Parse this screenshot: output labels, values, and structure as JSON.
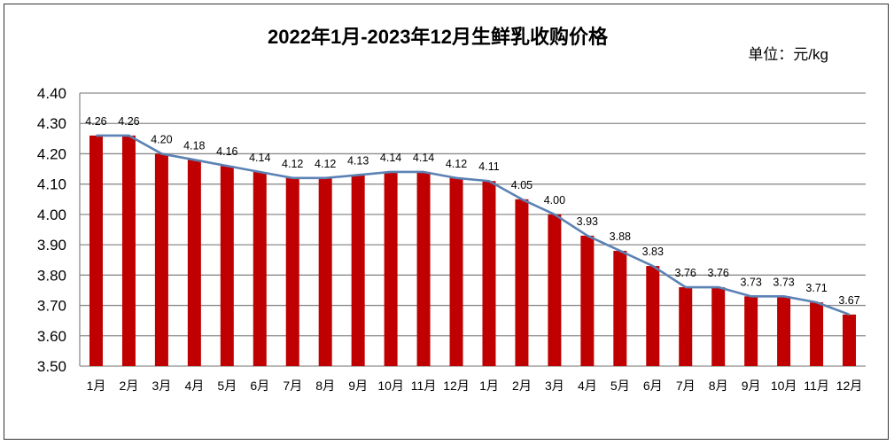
{
  "chart_data": {
    "type": "bar",
    "title": "2022年1月-2023年12月生鲜乳收购价格",
    "unit_label": "单位：元/kg",
    "categories": [
      "1月",
      "2月",
      "3月",
      "4月",
      "5月",
      "6月",
      "7月",
      "8月",
      "9月",
      "10月",
      "11月",
      "12月",
      "1月",
      "2月",
      "3月",
      "4月",
      "5月",
      "6月",
      "7月",
      "8月",
      "9月",
      "10月",
      "11月",
      "12月"
    ],
    "values": [
      4.26,
      4.26,
      4.2,
      4.18,
      4.16,
      4.14,
      4.12,
      4.12,
      4.13,
      4.14,
      4.14,
      4.12,
      4.11,
      4.05,
      4.0,
      3.93,
      3.88,
      3.83,
      3.76,
      3.76,
      3.73,
      3.73,
      3.71,
      3.67
    ],
    "line_overlay": true,
    "ylim": [
      3.5,
      4.4
    ],
    "yticks": [
      "3.50",
      "3.60",
      "3.70",
      "3.80",
      "3.90",
      "4.00",
      "4.10",
      "4.20",
      "4.30",
      "4.40"
    ],
    "grid": true,
    "bar_color": "#C00000",
    "line_color": "#5B82B4",
    "grid_color": "#8C8C8C"
  }
}
